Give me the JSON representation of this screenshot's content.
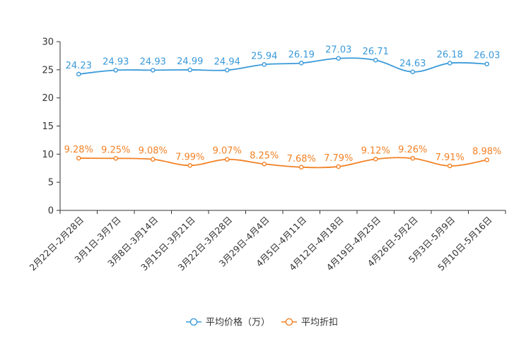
{
  "chart_data": {
    "type": "line",
    "categories": [
      "2月22日-2月28日",
      "3月1日-3月7日",
      "3月8日-3月14日",
      "3月15日-3月21日",
      "3月22日-3月28日",
      "3月29日-4月4日",
      "4月5日-4月11日",
      "4月12日-4月18日",
      "4月19日-4月25日",
      "4月26日-5月2日",
      "5月3日-5月9日",
      "5月10日-5月16日"
    ],
    "y_ticks": [
      "0",
      "5",
      "10",
      "15",
      "20",
      "25",
      "30"
    ],
    "ylim": [
      0,
      30
    ],
    "grid": false,
    "title": "",
    "xlabel": "",
    "ylabel": "",
    "legend_position": "bottom",
    "series": [
      {
        "name": "平均价格（万）",
        "color": "#3a9ad9",
        "values": [
          24.23,
          24.93,
          24.93,
          24.99,
          24.94,
          25.94,
          26.19,
          27.03,
          26.71,
          24.63,
          26.18,
          26.03
        ],
        "labels": [
          "24.23",
          "24.93",
          "24.93",
          "24.99",
          "24.94",
          "25.94",
          "26.19",
          "27.03",
          "26.71",
          "24.63",
          "26.18",
          "26.03"
        ]
      },
      {
        "name": "平均折扣",
        "color": "#f28226",
        "values": [
          9.28,
          9.25,
          9.08,
          7.99,
          9.07,
          8.25,
          7.68,
          7.79,
          9.12,
          9.26,
          7.91,
          8.98
        ],
        "labels": [
          "9.28%",
          "9.25%",
          "9.08%",
          "7.99%",
          "9.07%",
          "8.25%",
          "7.68%",
          "7.79%",
          "9.12%",
          "9.26%",
          "7.91%",
          "8.98%"
        ]
      }
    ]
  }
}
